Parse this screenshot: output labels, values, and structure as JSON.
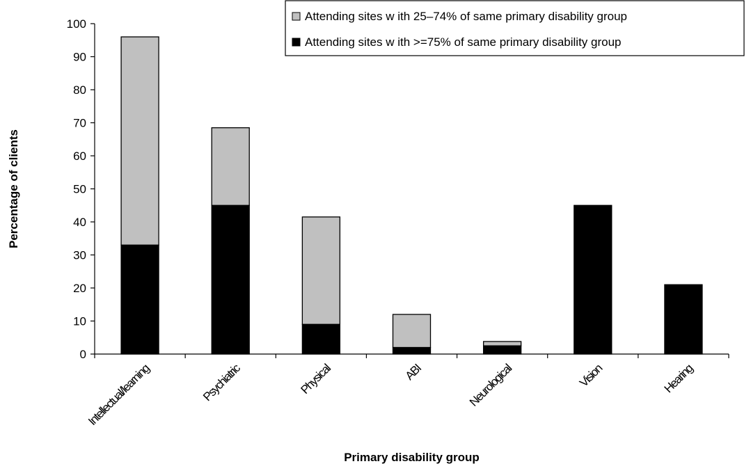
{
  "chart_data": {
    "type": "bar",
    "stacked": true,
    "categories": [
      "Intellectual/learning",
      "Psychiatric",
      "Physical",
      "ABI",
      "Neurological",
      "Vision",
      "Hearing"
    ],
    "series": [
      {
        "name": "Attending sites w ith >=75%  of same primary disability group",
        "color": "#000000",
        "values": [
          33,
          45,
          9,
          2,
          2.5,
          45,
          21
        ]
      },
      {
        "name": "Attending sites w ith 25–74% of same primary disability group",
        "color": "#c0c0c0",
        "values": [
          63,
          23.5,
          32.5,
          10,
          1.3,
          0,
          0
        ]
      }
    ],
    "legend_order": [
      1,
      0
    ],
    "xlabel": "Primary disability group",
    "ylabel": "Percentage of clients",
    "ylim": [
      0,
      100
    ],
    "yticks": [
      0,
      10,
      20,
      30,
      40,
      50,
      60,
      70,
      80,
      90,
      100
    ],
    "grid": false,
    "legend_position": "top-right"
  }
}
